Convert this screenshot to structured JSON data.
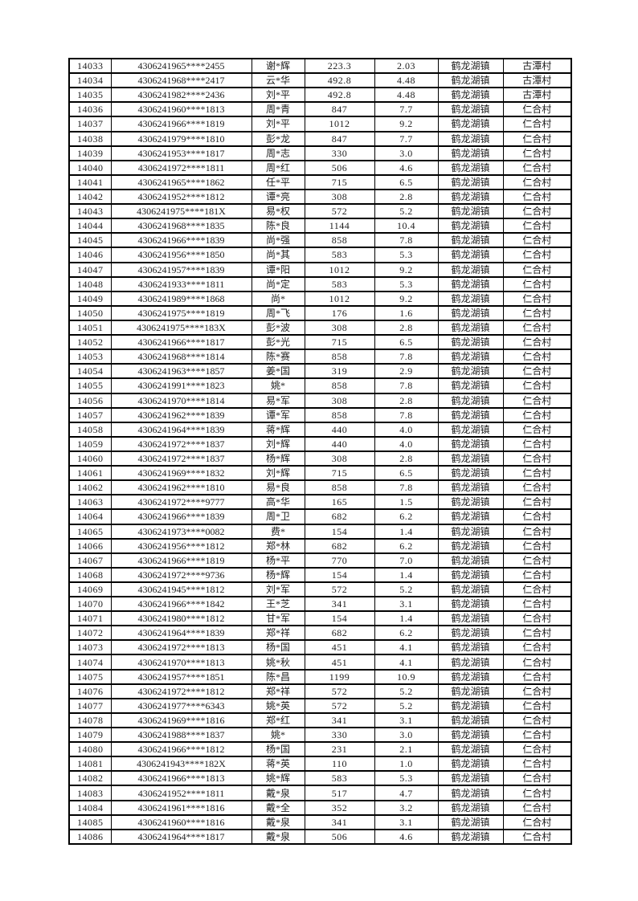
{
  "page": {
    "background": "#ffffff",
    "text_color": "#1c1c1c",
    "border_color": "#000000"
  },
  "table": {
    "column_semantics": [
      "cell-serial-number",
      "cell-id-card-masked",
      "cell-name-masked",
      "cell-amount",
      "cell-quantity",
      "cell-town",
      "cell-village"
    ],
    "rows": [
      [
        "14033",
        "4306241965****2455",
        "谢*辉",
        "223.3",
        "2.03",
        "鹤龙湖镇",
        "古潭村"
      ],
      [
        "14034",
        "4306241968****2417",
        "云*华",
        "492.8",
        "4.48",
        "鹤龙湖镇",
        "古潭村"
      ],
      [
        "14035",
        "4306241982****2436",
        "刘*平",
        "492.8",
        "4.48",
        "鹤龙湖镇",
        "古潭村"
      ],
      [
        "14036",
        "4306241960****1813",
        "周*青",
        "847",
        "7.7",
        "鹤龙湖镇",
        "仁合村"
      ],
      [
        "14037",
        "4306241966****1819",
        "刘*平",
        "1012",
        "9.2",
        "鹤龙湖镇",
        "仁合村"
      ],
      [
        "14038",
        "4306241979****1810",
        "彭*龙",
        "847",
        "7.7",
        "鹤龙湖镇",
        "仁合村"
      ],
      [
        "14039",
        "4306241953****1817",
        "周*志",
        "330",
        "3.0",
        "鹤龙湖镇",
        "仁合村"
      ],
      [
        "14040",
        "4306241972****1811",
        "周*红",
        "506",
        "4.6",
        "鹤龙湖镇",
        "仁合村"
      ],
      [
        "14041",
        "4306241965****1862",
        "任*平",
        "715",
        "6.5",
        "鹤龙湖镇",
        "仁合村"
      ],
      [
        "14042",
        "4306241952****1812",
        "谭*亮",
        "308",
        "2.8",
        "鹤龙湖镇",
        "仁合村"
      ],
      [
        "14043",
        "4306241975****181X",
        "易*权",
        "572",
        "5.2",
        "鹤龙湖镇",
        "仁合村"
      ],
      [
        "14044",
        "4306241968****1835",
        "陈*良",
        "1144",
        "10.4",
        "鹤龙湖镇",
        "仁合村"
      ],
      [
        "14045",
        "4306241966****1839",
        "尚*强",
        "858",
        "7.8",
        "鹤龙湖镇",
        "仁合村"
      ],
      [
        "14046",
        "4306241956****1850",
        "尚*其",
        "583",
        "5.3",
        "鹤龙湖镇",
        "仁合村"
      ],
      [
        "14047",
        "4306241957****1839",
        "谭*阳",
        "1012",
        "9.2",
        "鹤龙湖镇",
        "仁合村"
      ],
      [
        "14048",
        "4306241933****1811",
        "尚*定",
        "583",
        "5.3",
        "鹤龙湖镇",
        "仁合村"
      ],
      [
        "14049",
        "4306241989****1868",
        "尚*",
        "1012",
        "9.2",
        "鹤龙湖镇",
        "仁合村"
      ],
      [
        "14050",
        "4306241975****1819",
        "周*飞",
        "176",
        "1.6",
        "鹤龙湖镇",
        "仁合村"
      ],
      [
        "14051",
        "4306241975****183X",
        "彭*波",
        "308",
        "2.8",
        "鹤龙湖镇",
        "仁合村"
      ],
      [
        "14052",
        "4306241966****1817",
        "彭*光",
        "715",
        "6.5",
        "鹤龙湖镇",
        "仁合村"
      ],
      [
        "14053",
        "4306241968****1814",
        "陈*赛",
        "858",
        "7.8",
        "鹤龙湖镇",
        "仁合村"
      ],
      [
        "14054",
        "4306241963****1857",
        "姜*国",
        "319",
        "2.9",
        "鹤龙湖镇",
        "仁合村"
      ],
      [
        "14055",
        "4306241991****1823",
        "姚*",
        "858",
        "7.8",
        "鹤龙湖镇",
        "仁合村"
      ],
      [
        "14056",
        "4306241970****1814",
        "易*军",
        "308",
        "2.8",
        "鹤龙湖镇",
        "仁合村"
      ],
      [
        "14057",
        "4306241962****1839",
        "谭*军",
        "858",
        "7.8",
        "鹤龙湖镇",
        "仁合村"
      ],
      [
        "14058",
        "4306241964****1839",
        "蒋*辉",
        "440",
        "4.0",
        "鹤龙湖镇",
        "仁合村"
      ],
      [
        "14059",
        "4306241972****1837",
        "刘*辉",
        "440",
        "4.0",
        "鹤龙湖镇",
        "仁合村"
      ],
      [
        "14060",
        "4306241972****1837",
        "杨*辉",
        "308",
        "2.8",
        "鹤龙湖镇",
        "仁合村"
      ],
      [
        "14061",
        "4306241969****1832",
        "刘*辉",
        "715",
        "6.5",
        "鹤龙湖镇",
        "仁合村"
      ],
      [
        "14062",
        "4306241962****1810",
        "易*良",
        "858",
        "7.8",
        "鹤龙湖镇",
        "仁合村"
      ],
      [
        "14063",
        "4306241972****9777",
        "高*华",
        "165",
        "1.5",
        "鹤龙湖镇",
        "仁合村"
      ],
      [
        "14064",
        "4306241966****1839",
        "周*卫",
        "682",
        "6.2",
        "鹤龙湖镇",
        "仁合村"
      ],
      [
        "14065",
        "4306241973****0082",
        "费*",
        "154",
        "1.4",
        "鹤龙湖镇",
        "仁合村"
      ],
      [
        "14066",
        "4306241956****1812",
        "郑*林",
        "682",
        "6.2",
        "鹤龙湖镇",
        "仁合村"
      ],
      [
        "14067",
        "4306241966****1819",
        "杨*平",
        "770",
        "7.0",
        "鹤龙湖镇",
        "仁合村"
      ],
      [
        "14068",
        "4306241972****9736",
        "杨*辉",
        "154",
        "1.4",
        "鹤龙湖镇",
        "仁合村"
      ],
      [
        "14069",
        "4306241945****1812",
        "刘*军",
        "572",
        "5.2",
        "鹤龙湖镇",
        "仁合村"
      ],
      [
        "14070",
        "4306241966****1842",
        "王*芝",
        "341",
        "3.1",
        "鹤龙湖镇",
        "仁合村"
      ],
      [
        "14071",
        "4306241980****1812",
        "甘*军",
        "154",
        "1.4",
        "鹤龙湖镇",
        "仁合村"
      ],
      [
        "14072",
        "4306241964****1839",
        "郑*祥",
        "682",
        "6.2",
        "鹤龙湖镇",
        "仁合村"
      ],
      [
        "14073",
        "4306241972****1813",
        "杨*国",
        "451",
        "4.1",
        "鹤龙湖镇",
        "仁合村"
      ],
      [
        "14074",
        "4306241970****1813",
        "姚*秋",
        "451",
        "4.1",
        "鹤龙湖镇",
        "仁合村"
      ],
      [
        "14075",
        "4306241957****1851",
        "陈*昌",
        "1199",
        "10.9",
        "鹤龙湖镇",
        "仁合村"
      ],
      [
        "14076",
        "4306241972****1812",
        "郑*祥",
        "572",
        "5.2",
        "鹤龙湖镇",
        "仁合村"
      ],
      [
        "14077",
        "4306241977****6343",
        "姚*英",
        "572",
        "5.2",
        "鹤龙湖镇",
        "仁合村"
      ],
      [
        "14078",
        "4306241969****1816",
        "郑*红",
        "341",
        "3.1",
        "鹤龙湖镇",
        "仁合村"
      ],
      [
        "14079",
        "4306241988****1837",
        "姚*",
        "330",
        "3.0",
        "鹤龙湖镇",
        "仁合村"
      ],
      [
        "14080",
        "4306241966****1812",
        "杨*国",
        "231",
        "2.1",
        "鹤龙湖镇",
        "仁合村"
      ],
      [
        "14081",
        "4306241943****182X",
        "蒋*英",
        "110",
        "1.0",
        "鹤龙湖镇",
        "仁合村"
      ],
      [
        "14082",
        "4306241966****1813",
        "姚*辉",
        "583",
        "5.3",
        "鹤龙湖镇",
        "仁合村"
      ],
      [
        "14083",
        "4306241952****1811",
        "戴*泉",
        "517",
        "4.7",
        "鹤龙湖镇",
        "仁合村"
      ],
      [
        "14084",
        "4306241961****1816",
        "戴*全",
        "352",
        "3.2",
        "鹤龙湖镇",
        "仁合村"
      ],
      [
        "14085",
        "4306241960****1816",
        "戴*泉",
        "341",
        "3.1",
        "鹤龙湖镇",
        "仁合村"
      ],
      [
        "14086",
        "4306241964****1817",
        "戴*泉",
        "506",
        "4.6",
        "鹤龙湖镇",
        "仁合村"
      ]
    ]
  }
}
